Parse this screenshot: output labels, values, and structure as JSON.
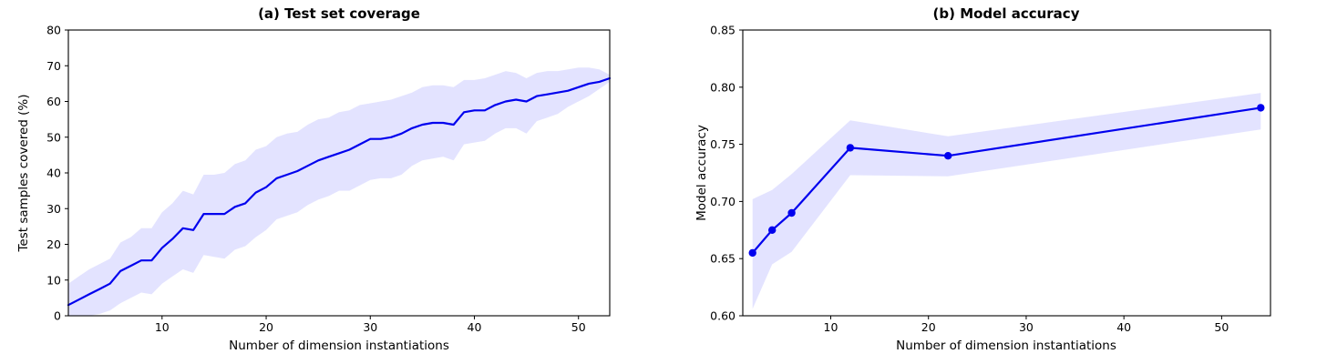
{
  "figure": {
    "background": "#ffffff",
    "line_color": "#0000ee",
    "band_color": "#0000ff",
    "band_opacity": 0.11,
    "axis_color": "#000000"
  },
  "chart_data": [
    {
      "id": "test-set-coverage",
      "type": "line",
      "title": "(a) Test set coverage",
      "xlabel": "Number of dimension instantiations",
      "ylabel": "Test samples covered (%)",
      "xlim": [
        1,
        53
      ],
      "ylim": [
        0,
        80
      ],
      "xticks": [
        10,
        20,
        30,
        40,
        50
      ],
      "yticks": [
        0,
        10,
        20,
        30,
        40,
        50,
        60,
        70,
        80
      ],
      "ytick_format": "int",
      "grid": false,
      "legend": "none",
      "markers": false,
      "x": [
        1,
        2,
        3,
        4,
        5,
        6,
        7,
        8,
        9,
        10,
        11,
        12,
        13,
        14,
        15,
        16,
        17,
        18,
        19,
        20,
        21,
        22,
        23,
        24,
        25,
        26,
        27,
        28,
        29,
        30,
        31,
        32,
        33,
        34,
        35,
        36,
        37,
        38,
        39,
        40,
        41,
        42,
        43,
        44,
        45,
        46,
        47,
        48,
        49,
        50,
        51,
        52,
        53
      ],
      "y": [
        3,
        4.5,
        6,
        7.5,
        9,
        12.5,
        14,
        15.5,
        15.5,
        19,
        21.5,
        24.5,
        24,
        28.5,
        28.5,
        28.5,
        30.5,
        31.5,
        34.5,
        36,
        38.5,
        39.5,
        40.5,
        42,
        43.5,
        44.5,
        45.5,
        46.5,
        48,
        49.5,
        49.5,
        50,
        51,
        52.5,
        53.5,
        54,
        54,
        53.5,
        57,
        57.5,
        57.5,
        59,
        60,
        60.5,
        60,
        61.5,
        62,
        62.5,
        63,
        64,
        65,
        65.5,
        66.5
      ],
      "band_lower": [
        0,
        0,
        0,
        0.5,
        1.5,
        3.5,
        5,
        6.5,
        6,
        9,
        11,
        13,
        12,
        17,
        16.5,
        16,
        18.5,
        19.5,
        22,
        24,
        27,
        28,
        29,
        31,
        32.5,
        33.5,
        35,
        35,
        36.5,
        38,
        38.5,
        38.5,
        39.5,
        42,
        43.5,
        44,
        44.5,
        43.5,
        48,
        48.5,
        49,
        51,
        52.5,
        52.5,
        51,
        54.5,
        55.5,
        56.5,
        58.5,
        60,
        61.5,
        63.5,
        65.5
      ],
      "band_upper": [
        9,
        11,
        13,
        14.5,
        16,
        20.5,
        22,
        24.5,
        24.5,
        29,
        31.5,
        35,
        34,
        39.5,
        39.5,
        40,
        42.5,
        43.5,
        46.5,
        47.5,
        50,
        51,
        51.5,
        53.5,
        55,
        55.5,
        57,
        57.5,
        59,
        59.5,
        60,
        60.5,
        61.5,
        62.5,
        64,
        64.5,
        64.5,
        64,
        66,
        66,
        66.5,
        67.5,
        68.5,
        68,
        66.5,
        68,
        68.5,
        68.5,
        69,
        69.5,
        69.5,
        69,
        67.5
      ]
    },
    {
      "id": "model-accuracy",
      "type": "line",
      "title": "(b) Model accuracy",
      "xlabel": "Number of dimension instantiations",
      "ylabel": "Model accuracy",
      "xlim": [
        1,
        55
      ],
      "ylim": [
        0.6,
        0.85
      ],
      "xticks": [
        10,
        20,
        30,
        40,
        50
      ],
      "yticks": [
        0.6,
        0.65,
        0.7,
        0.75,
        0.8,
        0.85
      ],
      "ytick_format": "2dp",
      "grid": false,
      "legend": "none",
      "markers": true,
      "x": [
        2,
        4,
        6,
        12,
        22,
        54
      ],
      "y": [
        0.655,
        0.675,
        0.69,
        0.747,
        0.74,
        0.782
      ],
      "band_lower": [
        0.606,
        0.645,
        0.656,
        0.723,
        0.722,
        0.763
      ],
      "band_upper": [
        0.702,
        0.71,
        0.724,
        0.771,
        0.757,
        0.795
      ]
    }
  ]
}
